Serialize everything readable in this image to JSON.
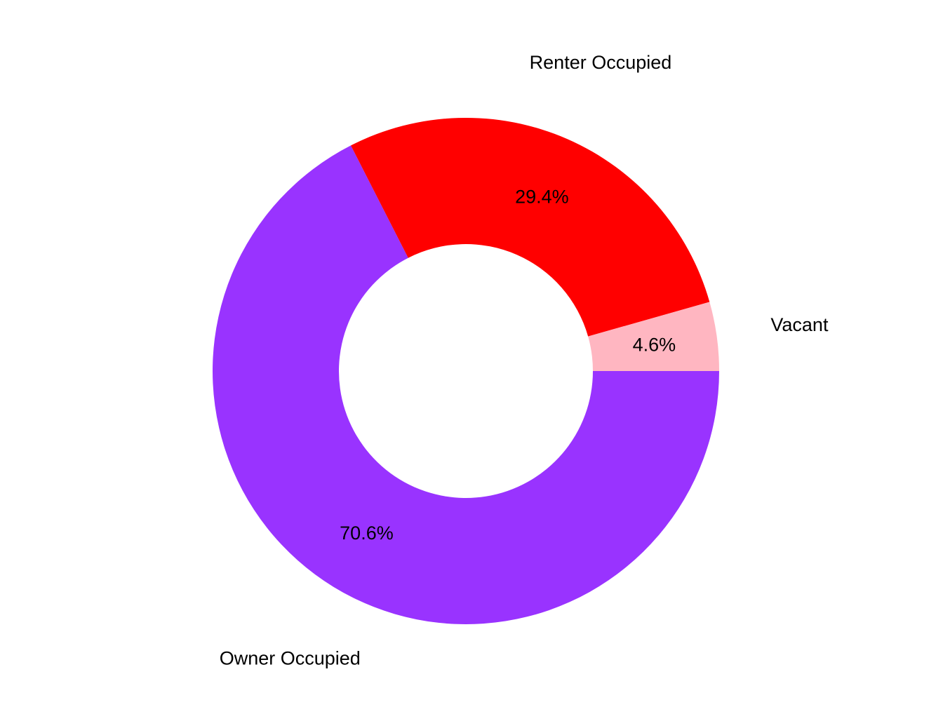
{
  "chart_data": {
    "type": "pie",
    "variant": "donut",
    "title": "",
    "categories": [
      "Owner Occupied",
      "Renter Occupied",
      "Vacant"
    ],
    "values": [
      70.6,
      29.4,
      4.6
    ],
    "value_labels": [
      "70.6%",
      "29.4%",
      "4.6%"
    ],
    "colors": [
      "#9933ff",
      "#ff0000",
      "#ffb6c1"
    ],
    "legend": "none"
  }
}
